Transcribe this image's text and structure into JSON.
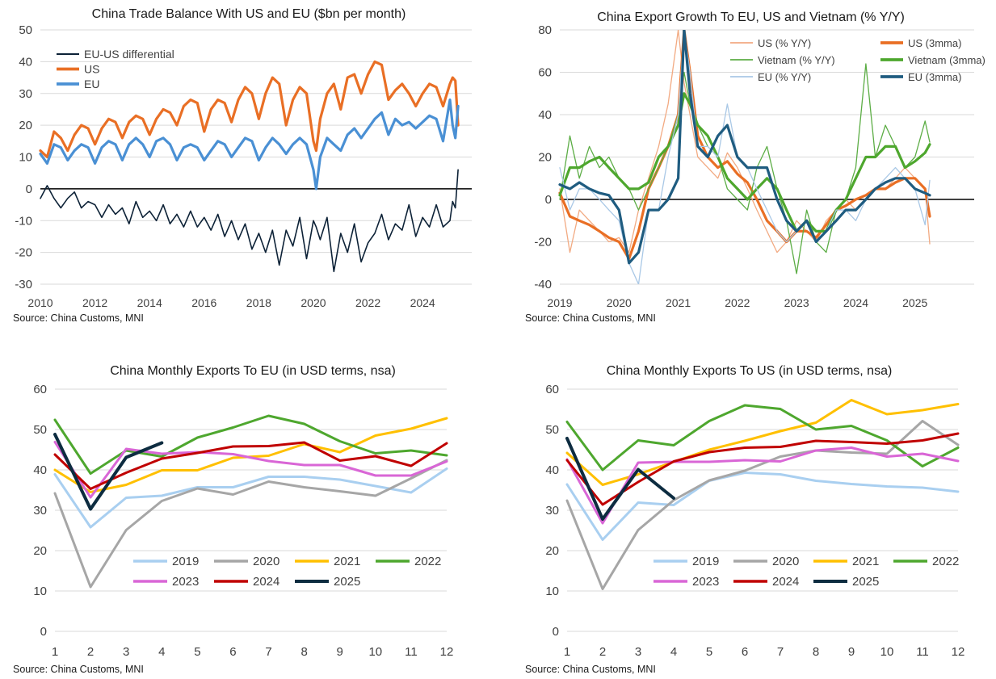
{
  "chart_data": [
    {
      "id": "balance",
      "type": "line",
      "title": "China Trade Balance With US and EU ($bn per month)",
      "source": "Source: China Customs, MNI",
      "xlabel": "",
      "ylabel": "",
      "xlim": [
        2010,
        2025.8
      ],
      "ylim": [
        -30,
        50
      ],
      "x_ticks": [
        2010,
        2012,
        2014,
        2016,
        2018,
        2020,
        2022,
        2024
      ],
      "x_tick_labels": [
        "2010",
        "2012",
        "2014",
        "2016",
        "2018",
        "2020",
        "2022",
        "2024"
      ],
      "y_ticks": [
        -30,
        -20,
        -10,
        0,
        10,
        20,
        30,
        40,
        50
      ],
      "y_tick_labels": [
        "-30",
        "-20",
        "-10",
        "0",
        "10",
        "20",
        "30",
        "40",
        "50"
      ],
      "legend_position": "top-left",
      "x": [
        2010.0,
        2010.25,
        2010.5,
        2010.75,
        2011.0,
        2011.25,
        2011.5,
        2011.75,
        2012.0,
        2012.25,
        2012.5,
        2012.75,
        2013.0,
        2013.25,
        2013.5,
        2013.75,
        2014.0,
        2014.25,
        2014.5,
        2014.75,
        2015.0,
        2015.25,
        2015.5,
        2015.75,
        2016.0,
        2016.25,
        2016.5,
        2016.75,
        2017.0,
        2017.25,
        2017.5,
        2017.75,
        2018.0,
        2018.25,
        2018.5,
        2018.75,
        2019.0,
        2019.25,
        2019.5,
        2019.75,
        2020.0,
        2020.1,
        2020.25,
        2020.5,
        2020.75,
        2021.0,
        2021.25,
        2021.5,
        2021.75,
        2022.0,
        2022.25,
        2022.5,
        2022.75,
        2023.0,
        2023.25,
        2023.5,
        2023.75,
        2024.0,
        2024.25,
        2024.5,
        2024.75,
        2025.0,
        2025.1,
        2025.2,
        2025.3
      ],
      "series": [
        {
          "name": "EU-US differential",
          "color": "#0d2237",
          "width": 1.6,
          "values": [
            -3,
            1,
            -3,
            -6,
            -3,
            -1,
            -6,
            -4,
            -5,
            -9,
            -5,
            -8,
            -6,
            -11,
            -4,
            -9,
            -7,
            -10,
            -5,
            -11,
            -8,
            -12,
            -7,
            -12,
            -9,
            -13,
            -8,
            -15,
            -10,
            -16,
            -11,
            -19,
            -14,
            -20,
            -13,
            -24,
            -13,
            -18,
            -9,
            -22,
            -10,
            -12,
            -16,
            -9,
            -26,
            -14,
            -20,
            -11,
            -23,
            -17,
            -14,
            -8,
            -16,
            -11,
            -13,
            -5,
            -15,
            -9,
            -12,
            -5,
            -12,
            -10,
            -4,
            -6,
            6
          ]
        },
        {
          "name": "US",
          "color": "#e96f25",
          "width": 3.2,
          "values": [
            12,
            10,
            18,
            16,
            12,
            17,
            20,
            19,
            14,
            19,
            22,
            21,
            16,
            21,
            23,
            22,
            17,
            22,
            25,
            24,
            20,
            26,
            28,
            27,
            18,
            25,
            28,
            27,
            21,
            28,
            32,
            30,
            22,
            30,
            35,
            33,
            20,
            28,
            32,
            30,
            15,
            12,
            22,
            30,
            33,
            25,
            35,
            36,
            30,
            36,
            40,
            39,
            28,
            31,
            33,
            30,
            26,
            30,
            33,
            32,
            26,
            33,
            35,
            34,
            20
          ]
        },
        {
          "name": "EU",
          "color": "#4a90d4",
          "width": 3.2,
          "values": [
            11,
            8,
            14,
            13,
            9,
            12,
            14,
            13,
            8,
            13,
            15,
            14,
            9,
            14,
            16,
            14,
            10,
            15,
            16,
            14,
            9,
            13,
            14,
            13,
            9,
            12,
            15,
            14,
            10,
            13,
            16,
            15,
            9,
            13,
            16,
            14,
            11,
            14,
            16,
            14,
            6,
            0,
            10,
            16,
            14,
            12,
            17,
            19,
            16,
            19,
            22,
            24,
            17,
            22,
            20,
            21,
            19,
            21,
            23,
            22,
            15,
            28,
            20,
            16,
            26
          ]
        }
      ]
    },
    {
      "id": "growth",
      "type": "line",
      "title": "China Export Growth To EU, US and Vietnam (% Y/Y)",
      "source": "Source: China Customs, MNI",
      "xlabel": "",
      "ylabel": "",
      "xlim": [
        2019,
        2026
      ],
      "ylim": [
        -40,
        80
      ],
      "x_ticks": [
        2019,
        2020,
        2021,
        2022,
        2023,
        2024,
        2025
      ],
      "x_tick_labels": [
        "2019",
        "2020",
        "2021",
        "2022",
        "2023",
        "2024",
        "2025"
      ],
      "y_ticks": [
        -40,
        -20,
        0,
        20,
        40,
        60,
        80
      ],
      "y_tick_labels": [
        "-40",
        "-20",
        "0",
        "20",
        "40",
        "60",
        "80"
      ],
      "legend_position": "top-right",
      "x": [
        2019.0,
        2019.17,
        2019.33,
        2019.5,
        2019.67,
        2019.83,
        2020.0,
        2020.17,
        2020.33,
        2020.5,
        2020.67,
        2020.83,
        2021.0,
        2021.1,
        2021.2,
        2021.33,
        2021.5,
        2021.67,
        2021.83,
        2022.0,
        2022.17,
        2022.33,
        2022.5,
        2022.67,
        2022.83,
        2023.0,
        2023.17,
        2023.33,
        2023.5,
        2023.67,
        2023.83,
        2024.0,
        2024.17,
        2024.33,
        2024.5,
        2024.67,
        2024.83,
        2025.0,
        2025.17,
        2025.25
      ],
      "series": [
        {
          "name": "US (% Y/Y)",
          "color": "#f2aa82",
          "width": 1.3,
          "values": [
            5,
            -25,
            -5,
            -10,
            -15,
            -20,
            -18,
            -25,
            -5,
            10,
            25,
            45,
            80,
            55,
            40,
            20,
            15,
            10,
            22,
            15,
            5,
            -5,
            -15,
            -25,
            -20,
            -10,
            -15,
            -20,
            -10,
            -5,
            0,
            -5,
            0,
            5,
            5,
            10,
            15,
            10,
            5,
            -21
          ]
        },
        {
          "name": "US (3mma)",
          "color": "#e96f25",
          "width": 3.2,
          "values": [
            3,
            -8,
            -10,
            -12,
            -15,
            -18,
            -20,
            -28,
            -15,
            5,
            15,
            25,
            40,
            80,
            60,
            30,
            20,
            15,
            18,
            12,
            8,
            0,
            -10,
            -15,
            -20,
            -15,
            -15,
            -18,
            -12,
            -5,
            -3,
            0,
            2,
            5,
            5,
            8,
            10,
            10,
            5,
            -8
          ]
        },
        {
          "name": "Vietnam (% Y/Y)",
          "color": "#5cad45",
          "width": 1.3,
          "values": [
            0,
            30,
            10,
            25,
            15,
            20,
            10,
            5,
            -5,
            5,
            15,
            25,
            40,
            60,
            45,
            35,
            25,
            20,
            5,
            0,
            -5,
            15,
            25,
            5,
            -10,
            -35,
            -5,
            -20,
            -25,
            -5,
            0,
            15,
            64,
            20,
            35,
            25,
            15,
            20,
            37,
            27
          ]
        },
        {
          "name": "Vietnam (3mma)",
          "color": "#4ea72e",
          "width": 3.2,
          "values": [
            2,
            15,
            15,
            18,
            20,
            15,
            10,
            5,
            5,
            8,
            20,
            25,
            35,
            50,
            45,
            35,
            30,
            20,
            10,
            5,
            0,
            5,
            10,
            5,
            -5,
            -15,
            -10,
            -15,
            -15,
            -5,
            0,
            10,
            20,
            20,
            25,
            25,
            15,
            18,
            22,
            26
          ]
        },
        {
          "name": "EU (% Y/Y)",
          "color": "#a9c8e6",
          "width": 1.3,
          "values": [
            15,
            -5,
            5,
            5,
            0,
            -5,
            -10,
            -30,
            -40,
            -5,
            -5,
            20,
            40,
            80,
            60,
            25,
            25,
            20,
            45,
            20,
            15,
            5,
            -5,
            -15,
            -20,
            -15,
            -10,
            -20,
            -15,
            -5,
            -5,
            -10,
            0,
            5,
            10,
            15,
            10,
            5,
            -12,
            9
          ]
        },
        {
          "name": "EU (3mma)",
          "color": "#1f5c80",
          "width": 3.2,
          "values": [
            7,
            5,
            8,
            5,
            3,
            2,
            -5,
            -30,
            -25,
            -5,
            -5,
            0,
            10,
            80,
            50,
            25,
            20,
            30,
            35,
            20,
            15,
            15,
            15,
            0,
            -10,
            -15,
            -10,
            -20,
            -15,
            -10,
            -5,
            -5,
            0,
            5,
            8,
            10,
            10,
            5,
            3,
            2
          ]
        }
      ]
    },
    {
      "id": "eu_exports",
      "type": "line",
      "title": "China Monthly Exports To EU (in USD terms, nsa)",
      "source": "Source: China Customs, MNI",
      "xlabel": "",
      "ylabel": "",
      "categories": [
        "1",
        "2",
        "3",
        "4",
        "5",
        "6",
        "7",
        "8",
        "9",
        "10",
        "11",
        "12"
      ],
      "ylim": [
        0,
        60
      ],
      "y_ticks": [
        0,
        10,
        20,
        30,
        40,
        50,
        60
      ],
      "y_tick_labels": [
        "0",
        "10",
        "20",
        "30",
        "40",
        "50",
        "60"
      ],
      "legend_position": "bottom",
      "series": [
        {
          "name": "2019",
          "color": "#a9cff0",
          "width": 3,
          "values": [
            38.9,
            25.8,
            33.1,
            33.6,
            35.7,
            35.7,
            38.3,
            38.3,
            37.6,
            36,
            34.4,
            40.3
          ]
        },
        {
          "name": "2020",
          "color": "#a6a6a6",
          "width": 3,
          "values": [
            34.2,
            11,
            25.1,
            32.3,
            35.4,
            33.9,
            37.1,
            35.7,
            34.7,
            33.6,
            37.9,
            42.4
          ]
        },
        {
          "name": "2021",
          "color": "#ffc000",
          "width": 3,
          "values": [
            40,
            34.5,
            36.3,
            39.9,
            39.9,
            43,
            43.5,
            46.4,
            44.4,
            48.5,
            50.2,
            52.8
          ]
        },
        {
          "name": "2022",
          "color": "#4ea72e",
          "width": 3,
          "values": [
            52.4,
            39.1,
            44.8,
            43.3,
            48,
            50.5,
            53.4,
            51.4,
            47.1,
            44.1,
            44.8,
            43.6
          ]
        },
        {
          "name": "2023",
          "color": "#d966d6",
          "width": 3,
          "values": [
            46.9,
            33.2,
            45.2,
            44,
            44.4,
            43.9,
            42.2,
            41.2,
            41.2,
            38.6,
            38.6,
            42.1
          ]
        },
        {
          "name": "2024",
          "color": "#c00000",
          "width": 3,
          "values": [
            43.8,
            35.3,
            39.3,
            42.8,
            44.2,
            45.8,
            45.9,
            46.8,
            42.3,
            43.4,
            41,
            46.6
          ]
        },
        {
          "name": "2025",
          "color": "#0d2c40",
          "width": 4,
          "values": [
            48.8,
            30.3,
            43.1,
            46.7,
            null,
            null,
            null,
            null,
            null,
            null,
            null,
            null
          ]
        }
      ]
    },
    {
      "id": "us_exports",
      "type": "line",
      "title": "China Monthly Exports To US (in USD terms, nsa)",
      "source": "Source: China Customs, MNI",
      "xlabel": "",
      "ylabel": "",
      "categories": [
        "1",
        "2",
        "3",
        "4",
        "5",
        "6",
        "7",
        "8",
        "9",
        "10",
        "11",
        "12"
      ],
      "ylim": [
        0,
        60
      ],
      "y_ticks": [
        0,
        10,
        20,
        30,
        40,
        50,
        60
      ],
      "y_tick_labels": [
        "0",
        "10",
        "20",
        "30",
        "40",
        "50",
        "60"
      ],
      "legend_position": "bottom",
      "series": [
        {
          "name": "2019",
          "color": "#a9cff0",
          "width": 3,
          "values": [
            36.4,
            22.7,
            31.9,
            31.3,
            37.3,
            39.3,
            38.9,
            37.3,
            36.5,
            35.9,
            35.6,
            34.6
          ]
        },
        {
          "name": "2020",
          "color": "#a6a6a6",
          "width": 3,
          "values": [
            32.4,
            10.5,
            25.1,
            32.5,
            37.4,
            39.8,
            43.3,
            44.8,
            44.3,
            44,
            52.1,
            46.2
          ]
        },
        {
          "name": "2021",
          "color": "#ffc000",
          "width": 3,
          "values": [
            44.2,
            36.3,
            38.9,
            42,
            45,
            47.2,
            49.6,
            51.7,
            57.3,
            53.8,
            54.8,
            56.3
          ]
        },
        {
          "name": "2022",
          "color": "#4ea72e",
          "width": 3,
          "values": [
            51.9,
            40,
            47.3,
            46.1,
            52.1,
            56,
            55.1,
            50,
            50.9,
            47.3,
            40.9,
            45.5
          ]
        },
        {
          "name": "2023",
          "color": "#d966d6",
          "width": 3,
          "values": [
            42.6,
            26.8,
            41.8,
            42,
            42,
            42.4,
            42.1,
            44.8,
            45.5,
            43.3,
            44,
            42.2
          ]
        },
        {
          "name": "2024",
          "color": "#c00000",
          "width": 3,
          "values": [
            42.4,
            31.4,
            37,
            42.1,
            44.4,
            45.5,
            45.7,
            47.2,
            46.9,
            46.5,
            47.3,
            49
          ]
        },
        {
          "name": "2025",
          "color": "#0d2c40",
          "width": 4,
          "values": [
            47.8,
            27.8,
            40.1,
            33,
            null,
            null,
            null,
            null,
            null,
            null,
            null,
            null
          ]
        }
      ]
    }
  ]
}
